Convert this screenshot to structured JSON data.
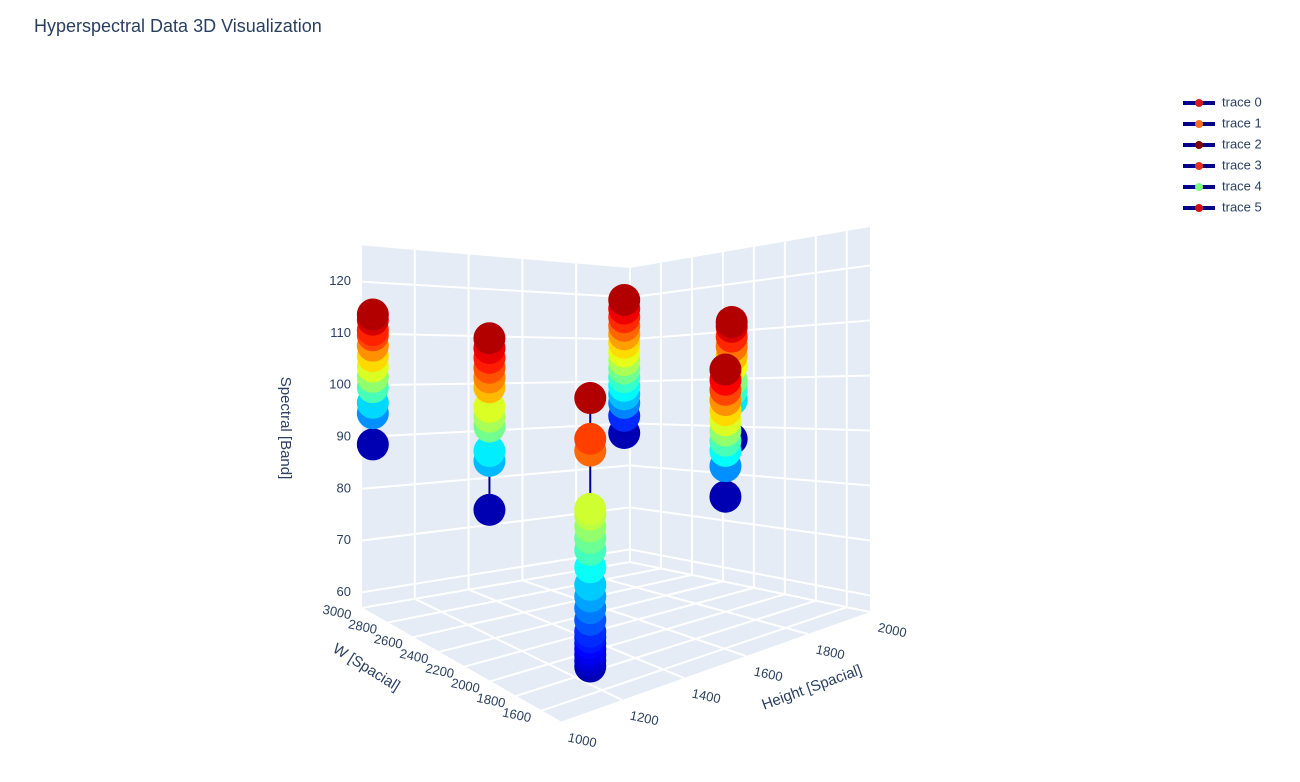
{
  "chart_data": {
    "type": "scatter3d",
    "title": "Hyperspectral Data 3D Visualization",
    "xlabel": "Height [Spacial]",
    "ylabel": "W [Spacial]",
    "zlabel": "Spectral [Band]",
    "xlim": [
      1000,
      2000
    ],
    "ylim": [
      1450,
      3000
    ],
    "zlim": [
      57,
      127
    ],
    "xticks": [
      1000,
      1200,
      1400,
      1600,
      1800,
      2000
    ],
    "yticks": [
      1600,
      1800,
      2000,
      2200,
      2400,
      2600,
      2800,
      3000
    ],
    "zticks": [
      60,
      70,
      80,
      90,
      100,
      110,
      120
    ],
    "colorscale": "Jet",
    "line_color": "#00008b",
    "grid": true,
    "series": [
      {
        "name": "trace 0",
        "color": "#d7191c",
        "x": 1020,
        "y": 2950,
        "values": [
          89,
          95,
          97,
          100,
          102,
          104,
          106,
          108,
          110,
          111,
          113,
          114
        ]
      },
      {
        "name": "trace 1",
        "color": "#f46d1e",
        "x": 1400,
        "y": 2850,
        "values": [
          75,
          85,
          87,
          92,
          94,
          96,
          100,
          102,
          104,
          106,
          108,
          110
        ]
      },
      {
        "name": "trace 2",
        "color": "#800000",
        "x": 1250,
        "y": 1800,
        "values": [
          58,
          59,
          60,
          61,
          62,
          63,
          64,
          66,
          68,
          70,
          72,
          75,
          78,
          80,
          82,
          84,
          85,
          95,
          97,
          104
        ]
      },
      {
        "name": "trace 3",
        "color": "#e8311c",
        "x": 1950,
        "y": 2950,
        "values": [
          88,
          92,
          95,
          97,
          99,
          101,
          103,
          105,
          107,
          109,
          111,
          113,
          115,
          117,
          119
        ]
      },
      {
        "name": "trace 4",
        "color": "#7fff7f",
        "x": 1850,
        "y": 2100,
        "values": [
          78,
          84,
          87,
          89,
          91,
          93,
          95,
          97,
          99,
          101,
          103
        ]
      },
      {
        "name": "trace 5",
        "color": "#d01010",
        "x": 1950,
        "y": 2250,
        "values": [
          88,
          96,
          98,
          100,
          103,
          105,
          107,
          109,
          111,
          112
        ]
      }
    ]
  }
}
